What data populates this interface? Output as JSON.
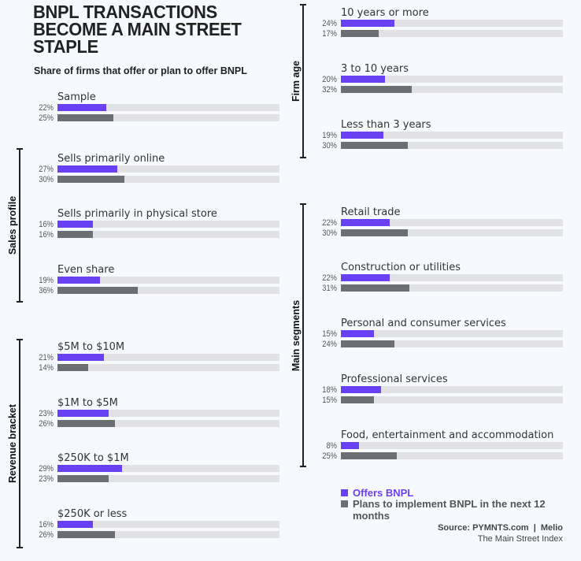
{
  "colors": {
    "offers": "#6a40f5",
    "plans": "#6b6e72",
    "track": "#e2e2e4"
  },
  "title": "BNPL TRANSACTIONS BECOME A MAIN STREET STAPLE",
  "subtitle": "Share of firms that offer or plan to offer BNPL",
  "legend": {
    "offers": "Offers BNPL",
    "plans": "Plans to implement BNPL in the next 12 months"
  },
  "source": "Source: PYMNTS.com  |  Melio",
  "source2": "The Main Street Index",
  "chart_data": {
    "type": "bar",
    "orientation": "horizontal",
    "unit": "%",
    "xlim": [
      0,
      100
    ],
    "series": [
      {
        "name": "Offers BNPL"
      },
      {
        "name": "Plans to implement BNPL in the next 12 months"
      }
    ],
    "sections": [
      {
        "name": "",
        "groups": [
          {
            "label": "Sample",
            "offers": 22,
            "plans": 25
          }
        ]
      },
      {
        "name": "Sales profile",
        "groups": [
          {
            "label": "Sells primarily online",
            "offers": 27,
            "plans": 30
          },
          {
            "label": "Sells primarily in physical store",
            "offers": 16,
            "plans": 16
          },
          {
            "label": "Even share",
            "offers": 19,
            "plans": 36
          }
        ]
      },
      {
        "name": "Revenue bracket",
        "groups": [
          {
            "label": "$5M to $10M",
            "offers": 21,
            "plans": 14
          },
          {
            "label": "$1M to $5M",
            "offers": 23,
            "plans": 26
          },
          {
            "label": "$250K to $1M",
            "offers": 29,
            "plans": 23
          },
          {
            "label": "$250K or less",
            "offers": 16,
            "plans": 26
          }
        ]
      },
      {
        "name": "Firm age",
        "groups": [
          {
            "label": "10 years or more",
            "offers": 24,
            "plans": 17
          },
          {
            "label": "3 to 10 years",
            "offers": 20,
            "plans": 32
          },
          {
            "label": "Less than 3 years",
            "offers": 19,
            "plans": 30
          }
        ]
      },
      {
        "name": "Main segments",
        "groups": [
          {
            "label": "Retail trade",
            "offers": 22,
            "plans": 30
          },
          {
            "label": "Construction or utilities",
            "offers": 22,
            "plans": 31
          },
          {
            "label": "Personal and consumer services",
            "offers": 15,
            "plans": 24
          },
          {
            "label": "Professional services",
            "offers": 18,
            "plans": 15
          },
          {
            "label": "Food, entertainment and accommodation",
            "offers": 8,
            "plans": 25
          }
        ]
      }
    ]
  }
}
